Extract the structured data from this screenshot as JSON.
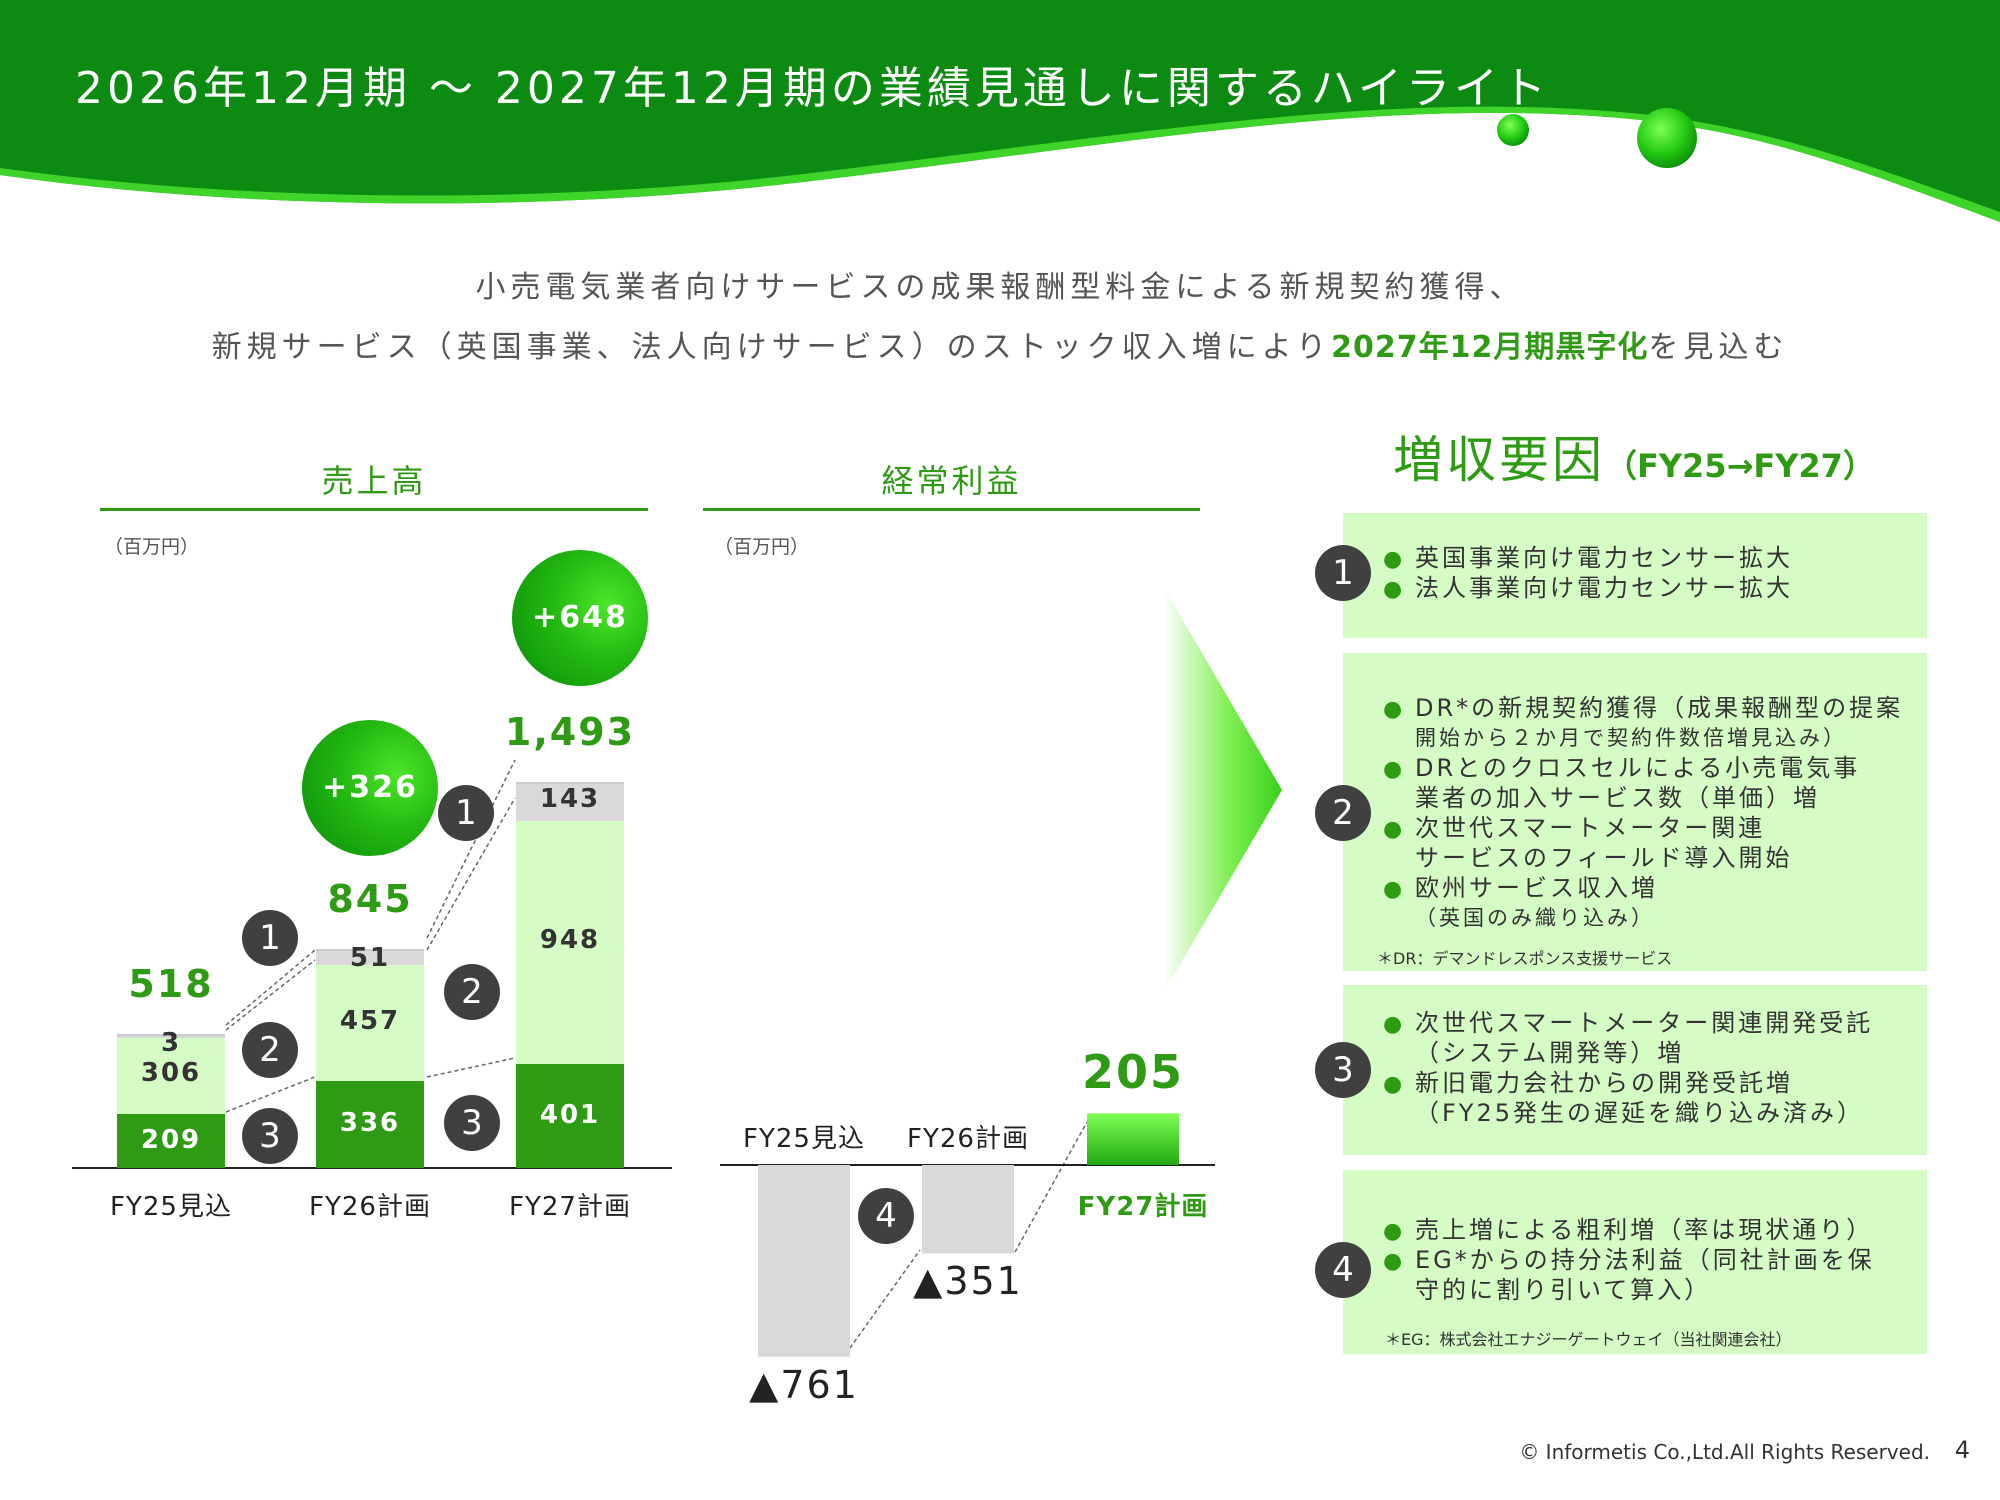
{
  "header": {
    "title": "2026年12月期 〜 2027年12月期の業績見通しに関するハイライト",
    "lead_line1": "小売電気業者向けサービスの成果報酬型料金による新規契約獲得、",
    "lead_line2_pre": "新規サービス（英国事業、法人向けサービス）のストック収入増により",
    "lead_line2_bold": "2027年12月期黒字化",
    "lead_line2_post": "を見込む"
  },
  "colors": {
    "brand_green": "#2f9a14",
    "light_green": "#d4fcc4",
    "gray": "#d9d9d9",
    "badge": "#404040"
  },
  "sales": {
    "title": "売上高",
    "unit": "（百万円）",
    "deltas": [
      "+326",
      "+648"
    ]
  },
  "profit": {
    "title": "経常利益",
    "unit": "（百万円）"
  },
  "factors": {
    "title": "増収要因",
    "title_sub": "（FY25→FY27）",
    "panels": [
      {
        "badge": "1",
        "items": [
          [
            "英国事業向け電力センサー拡大"
          ],
          [
            "法人事業向け電力センサー拡大"
          ]
        ],
        "note": ""
      },
      {
        "badge": "2",
        "items": [
          [
            "DR*の新規契約獲得（成果報酬型の提案",
            "開始から２か月で契約件数倍増見込み）"
          ],
          [
            "DRとのクロスセルによる小売電気事",
            "業者の加入サービス数（単価）増"
          ],
          [
            "次世代スマートメーター関連",
            "サービスのフィールド導入開始"
          ],
          [
            "欧州サービス収入増",
            "（英国のみ織り込み）"
          ]
        ],
        "note": "＊DR：デマンドレスポンス支援サービス"
      },
      {
        "badge": "3",
        "items": [
          [
            "次世代スマートメーター関連開発受託",
            "（システム開発等）増"
          ],
          [
            "新旧電力会社からの開発受託増",
            "（FY25発生の遅延を織り込み済み）"
          ]
        ],
        "note": ""
      },
      {
        "badge": "4",
        "items": [
          [
            "売上増による粗利増（率は現状通り）"
          ],
          [
            "EG*からの持分法利益（同社計画を保",
            "守的に割り引いて算入）"
          ]
        ],
        "note": "＊EG：株式会社エナジーゲートウェイ（当社関連会社）"
      }
    ]
  },
  "footer": {
    "copyright": "© Informetis Co.,Ltd.All Rights Reserved.",
    "page": "4"
  },
  "chart_data": [
    {
      "type": "bar",
      "stacked": true,
      "title": "売上高",
      "unit": "（百万円）",
      "categories": [
        "FY25見込",
        "FY26計画",
        "FY27計画"
      ],
      "series": [
        {
          "badge": "3",
          "values": [
            209,
            336,
            401
          ],
          "color": "#2f9a14"
        },
        {
          "badge": "2",
          "values": [
            306,
            457,
            948
          ],
          "color": "#d4fcc4"
        },
        {
          "badge": "1",
          "values": [
            3,
            51,
            143
          ],
          "color": "#d9d9d9"
        }
      ],
      "totals": [
        "518",
        "845",
        "1,493"
      ],
      "increments": [
        "+326",
        "+648"
      ]
    },
    {
      "type": "bar",
      "title": "経常利益",
      "unit": "（百万円）",
      "categories": [
        "FY25見込",
        "FY26計画",
        "FY27計画"
      ],
      "values": [
        -761,
        -351,
        205
      ],
      "value_labels": [
        "▲761",
        "▲351",
        "205"
      ],
      "badge": "4"
    }
  ]
}
